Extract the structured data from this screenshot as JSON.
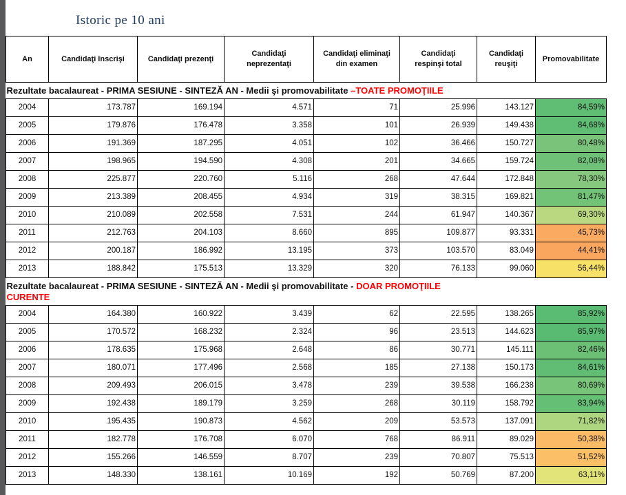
{
  "title": "Istoric pe 10 ani",
  "colors": {
    "left_strip": "#58585a",
    "title_blue": "#1f3a60",
    "section_highlight_red": "#ff0000",
    "table_border": "#000000"
  },
  "table": {
    "columns": [
      "An",
      "Candidaţi înscrişi",
      "Candidaţi prezenţi",
      "Candidaţi neprezentaţi",
      "Candidaţi eliminaţi din examen",
      "Candidaţi respinşi total",
      "Candidaţi reuşiţi",
      "Promovabilitate"
    ],
    "sections": [
      {
        "heading": {
          "black": "Rezultate bacalaureat - PRIMA SESIUNE - SINTEZĂ AN - Medii şi promovabilitate ",
          "red": "–TOATE PROMOŢIILE",
          "red2": ""
        },
        "rows": [
          {
            "cells": [
              "2004",
              "173.787",
              "169.194",
              "4.571",
              "71",
              "25.996",
              "143.127",
              "84,59%"
            ],
            "promo_color": "#60bd74"
          },
          {
            "cells": [
              "2005",
              "179.876",
              "176.478",
              "3.358",
              "101",
              "26.939",
              "149.438",
              "84,68%"
            ],
            "promo_color": "#5fbd74"
          },
          {
            "cells": [
              "2006",
              "191.369",
              "187.295",
              "4.051",
              "102",
              "36.466",
              "150.727",
              "80,48%"
            ],
            "promo_color": "#79c47a"
          },
          {
            "cells": [
              "2007",
              "198.965",
              "194.590",
              "4.308",
              "201",
              "34.665",
              "159.724",
              "82,08%"
            ],
            "promo_color": "#6ec177"
          },
          {
            "cells": [
              "2008",
              "225.877",
              "220.760",
              "5.116",
              "268",
              "47.644",
              "172.848",
              "78,30%"
            ],
            "promo_color": "#86c87d"
          },
          {
            "cells": [
              "2009",
              "213.389",
              "208.455",
              "4.934",
              "319",
              "38.315",
              "169.821",
              "81,47%"
            ],
            "promo_color": "#72c278"
          },
          {
            "cells": [
              "2010",
              "210.089",
              "202.558",
              "7.531",
              "244",
              "61.947",
              "140.367",
              "69,30%"
            ],
            "promo_color": "#b9d87f"
          },
          {
            "cells": [
              "2011",
              "212.763",
              "204.103",
              "8.660",
              "895",
              "109.877",
              "93.331",
              "45,73%"
            ],
            "promo_color": "#fbaa61"
          },
          {
            "cells": [
              "2012",
              "200.187",
              "186.992",
              "13.195",
              "373",
              "103.570",
              "83.049",
              "44,41%"
            ],
            "promo_color": "#faa65e"
          },
          {
            "cells": [
              "2013",
              "188.842",
              "175.513",
              "13.329",
              "320",
              "76.133",
              "99.060",
              "56,44%"
            ],
            "promo_color": "#f8e167"
          }
        ]
      },
      {
        "heading": {
          "black": "Rezultate bacalaureat - PRIMA SESIUNE - SINTEZĂ AN - Medii şi promovabilitate - ",
          "red": "DOAR PROMOŢIILE",
          "red2": "CURENTE"
        },
        "rows": [
          {
            "cells": [
              "2004",
              "164.380",
              "160.922",
              "3.439",
              "62",
              "22.595",
              "138.265",
              "85,92%"
            ],
            "promo_color": "#5abc72"
          },
          {
            "cells": [
              "2005",
              "170.572",
              "168.232",
              "2.324",
              "96",
              "23.513",
              "144.623",
              "85,97%"
            ],
            "promo_color": "#59bb71"
          },
          {
            "cells": [
              "2006",
              "178.635",
              "175.968",
              "2.648",
              "86",
              "30.771",
              "145.111",
              "82,46%"
            ],
            "promo_color": "#6cc076"
          },
          {
            "cells": [
              "2007",
              "180.071",
              "177.496",
              "2.568",
              "185",
              "27.138",
              "150.173",
              "84,61%"
            ],
            "promo_color": "#61bd74"
          },
          {
            "cells": [
              "2008",
              "209.493",
              "206.015",
              "3.478",
              "239",
              "39.538",
              "166.238",
              "80,69%"
            ],
            "promo_color": "#78c479"
          },
          {
            "cells": [
              "2009",
              "192.438",
              "189.179",
              "3.259",
              "268",
              "30.119",
              "158.792",
              "83,94%"
            ],
            "promo_color": "#65bf75"
          },
          {
            "cells": [
              "2010",
              "195.435",
              "190.873",
              "4.562",
              "209",
              "53.573",
              "137.091",
              "71,82%"
            ],
            "promo_color": "#aed57f"
          },
          {
            "cells": [
              "2011",
              "182.778",
              "176.708",
              "6.070",
              "768",
              "86.911",
              "89.029",
              "50,38%"
            ],
            "promo_color": "#fbba66"
          },
          {
            "cells": [
              "2012",
              "155.266",
              "146.559",
              "8.707",
              "239",
              "70.807",
              "75.513",
              "51,52%"
            ],
            "promo_color": "#fbbf68"
          },
          {
            "cells": [
              "2013",
              "148.330",
              "138.161",
              "10.169",
              "192",
              "50.769",
              "87.200",
              "63,11%"
            ],
            "promo_color": "#e2e378"
          }
        ]
      }
    ]
  }
}
